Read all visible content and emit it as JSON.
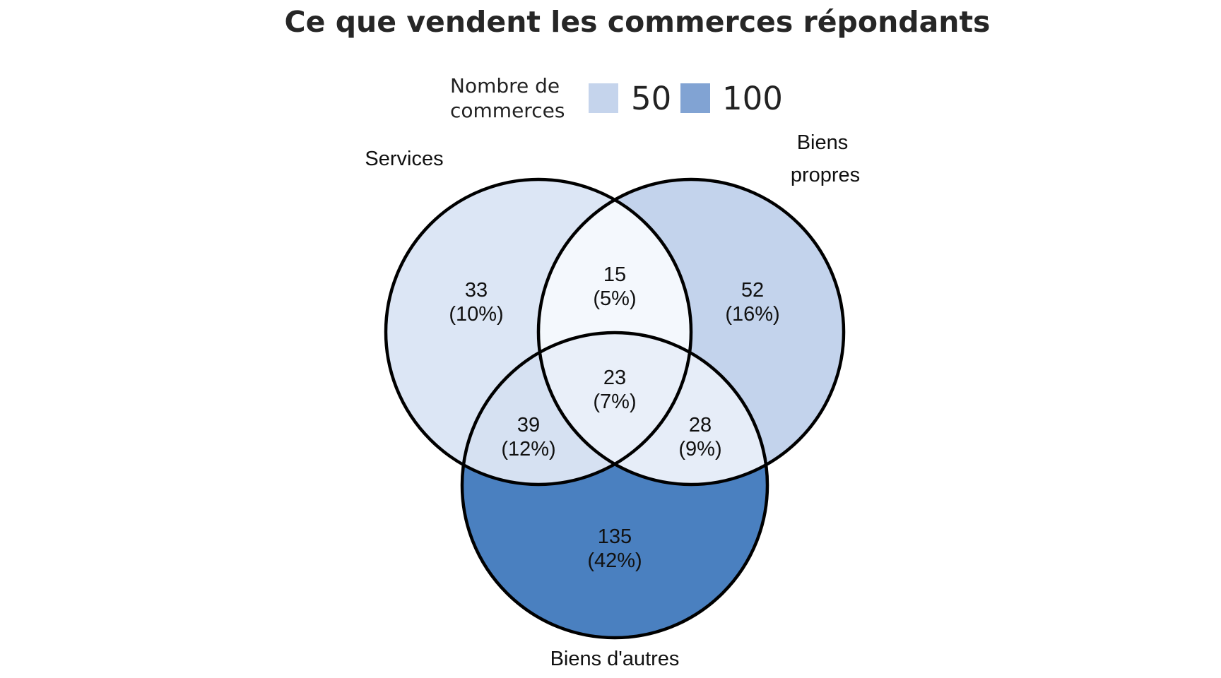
{
  "title": "Ce que vendent les commerces répondants",
  "legend": {
    "title_lines": [
      "Nombre de",
      "commerces"
    ],
    "items": [
      {
        "value": "50",
        "color": "#c5d4ec"
      },
      {
        "value": "100",
        "color": "#81a3d3"
      }
    ]
  },
  "sets": {
    "services": {
      "label": "Services"
    },
    "biens_propres": {
      "label_lines": [
        "Biens",
        "propres"
      ]
    },
    "biens_autres": {
      "label": "Biens d'autres"
    }
  },
  "regions": {
    "services_only": {
      "count": "33",
      "pct": "(10%)",
      "color": "#dce6f5"
    },
    "biens_propres_only": {
      "count": "52",
      "pct": "(16%)",
      "color": "#c3d3ec"
    },
    "biens_autres_only": {
      "count": "135",
      "pct": "(42%)",
      "color": "#4a80c0"
    },
    "services_biens_propres": {
      "count": "15",
      "pct": "(5%)",
      "color": "#f4f8fd"
    },
    "services_biens_autres": {
      "count": "39",
      "pct": "(12%)",
      "color": "#d6e1f2"
    },
    "biens_propres_biens_autres": {
      "count": "28",
      "pct": "(9%)",
      "color": "#e6edf8"
    },
    "all_three": {
      "count": "23",
      "pct": "(7%)",
      "color": "#e9eff9"
    }
  }
}
